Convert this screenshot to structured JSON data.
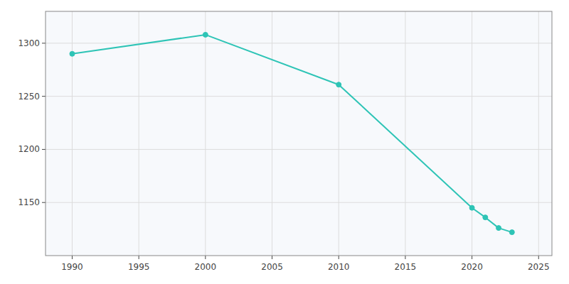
{
  "chart_data": {
    "type": "line",
    "x": [
      1990,
      2000,
      2010,
      2020,
      2021,
      2022,
      2023
    ],
    "values": [
      1290,
      1308,
      1261,
      1145,
      1136,
      1126,
      1122
    ],
    "color": "#2ec4b6",
    "marker": "circle",
    "xlim": [
      1988,
      2026
    ],
    "ylim": [
      1100,
      1330
    ],
    "xticks": [
      1990,
      1995,
      2000,
      2005,
      2010,
      2015,
      2020,
      2025
    ],
    "yticks": [
      1150,
      1200,
      1250,
      1300
    ],
    "grid": true
  }
}
